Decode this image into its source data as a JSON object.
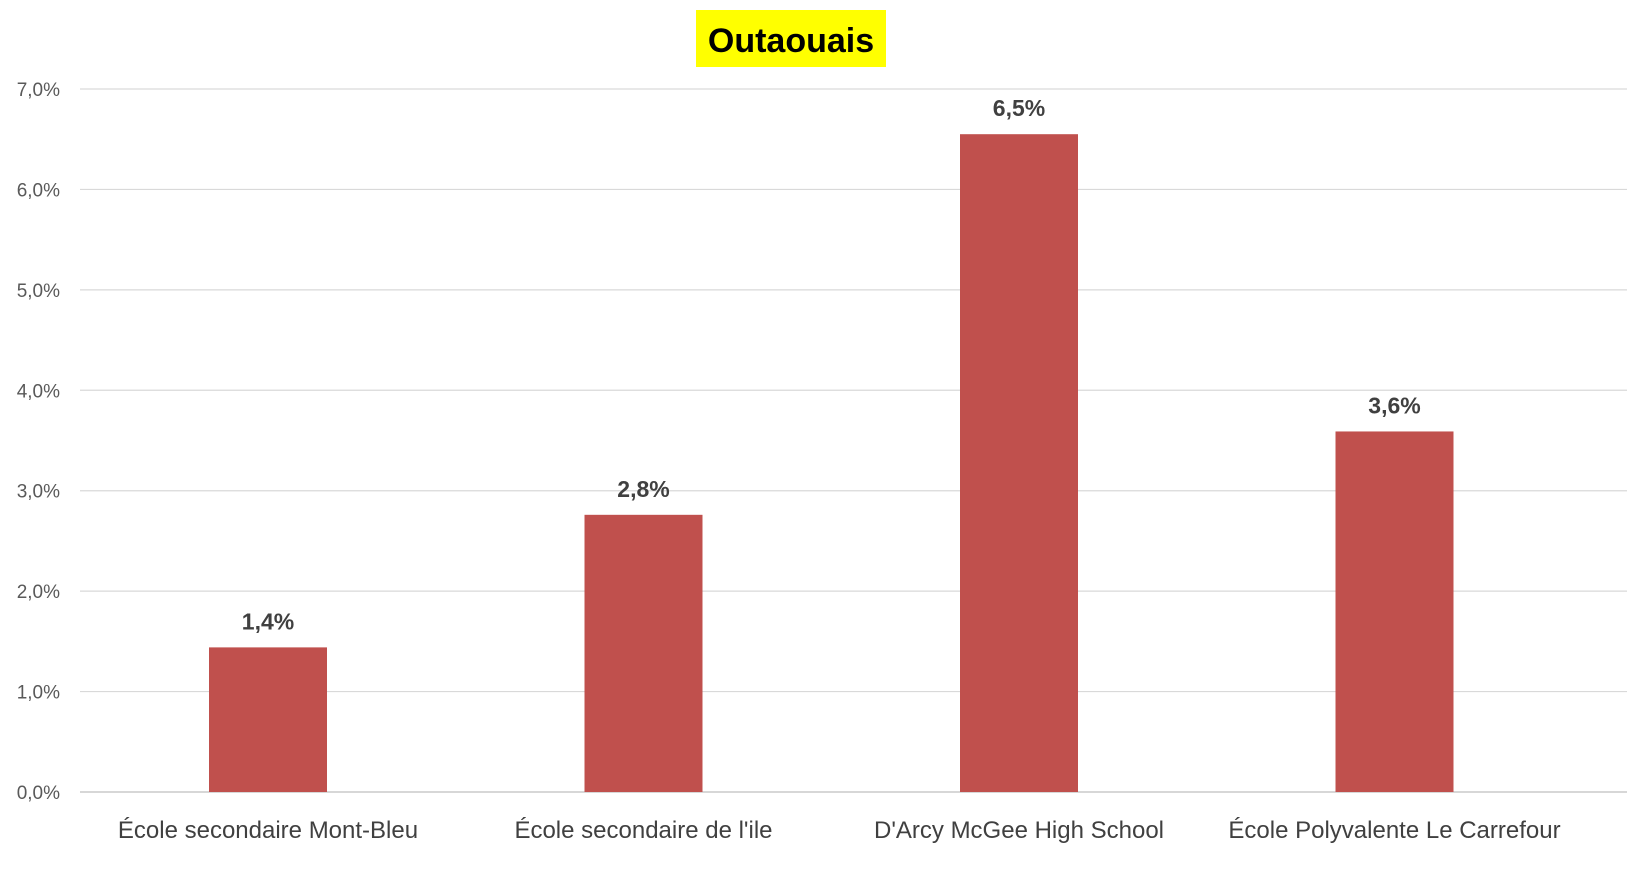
{
  "chart_data": {
    "type": "bar",
    "title": "Outaouais",
    "title_highlight_color": "#FFFF00",
    "bar_color": "#C0504D",
    "gridlines": true,
    "categories": [
      "École secondaire Mont-Bleu",
      "École secondaire de l'ile",
      "D'Arcy McGee High School",
      "École Polyvalente Le Carrefour"
    ],
    "values": [
      1.44,
      2.76,
      6.55,
      3.59
    ],
    "data_labels": [
      "1,4%",
      "2,8%",
      "6,5%",
      "3,6%"
    ],
    "y_ticks": [
      "0,0%",
      "1,0%",
      "2,0%",
      "3,0%",
      "4,0%",
      "5,0%",
      "6,0%",
      "7,0%"
    ],
    "ylim": [
      0,
      7
    ],
    "xlabel": "",
    "ylabel": ""
  }
}
